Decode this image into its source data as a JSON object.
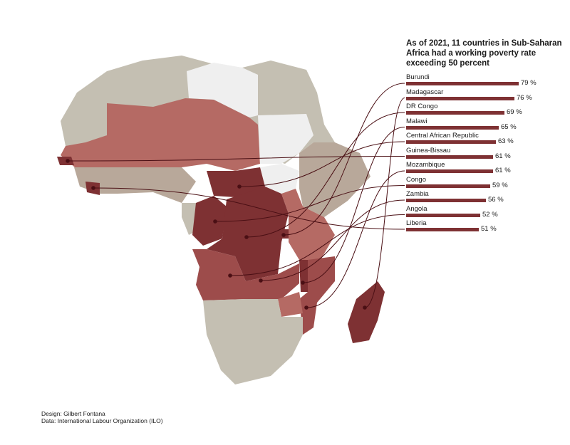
{
  "title": "As of 2021, 11 countries in Sub-Saharan Africa had a working poverty rate exceeding 50 percent",
  "credits": {
    "design": "Design: Gilbert Fontana",
    "data": "Data: International Labour Organization (ILO)"
  },
  "colors": {
    "ocean": "#ffffff",
    "north_africa": "#c4bfb2",
    "no_data": "#efefef",
    "low": "#b8a89a",
    "medium": "#b56a64",
    "high": "#9d4c4b",
    "very_high": "#7e3133",
    "leader": "#4a0f14",
    "bar": "#7e3133"
  },
  "chart_data": {
    "type": "bar",
    "unit": "%",
    "bar_scale_max": 79,
    "countries": [
      {
        "name": "Burundi",
        "value": 79,
        "label": "79 %"
      },
      {
        "name": "Madagascar",
        "value": 76,
        "label": "76 %"
      },
      {
        "name": "DR Congo",
        "value": 69,
        "label": "69 %"
      },
      {
        "name": "Malawi",
        "value": 65,
        "label": "65 %"
      },
      {
        "name": "Central African Republic",
        "value": 63,
        "label": "63 %"
      },
      {
        "name": "Guinea-Bissau",
        "value": 61,
        "label": "61 %"
      },
      {
        "name": "Mozambique",
        "value": 61,
        "label": "61 %"
      },
      {
        "name": "Congo",
        "value": 59,
        "label": "59 %"
      },
      {
        "name": "Zambia",
        "value": 56,
        "label": "56 %"
      },
      {
        "name": "Angola",
        "value": 52,
        "label": "52 %"
      },
      {
        "name": "Liberia",
        "value": 51,
        "label": "51 %"
      }
    ]
  }
}
